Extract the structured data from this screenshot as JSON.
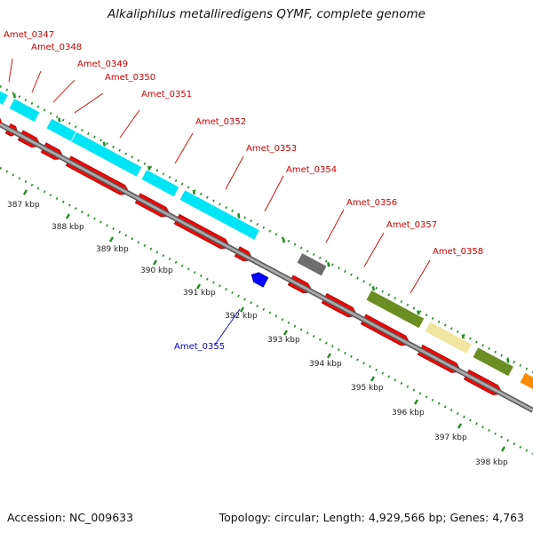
{
  "title": "Alkaliphilus metalliredigens QYMF, complete genome",
  "footer": {
    "accession": "Accession: NC_009633",
    "summary": "Topology: circular; Length: 4,929,566 bp; Genes: 4,763"
  },
  "colors": {
    "forward_cds": "#ff0000",
    "reverse_cds": "#0000ff",
    "backbone": "#8a8a8a",
    "tick": "#228b22",
    "gene_label_forward": "#cc0000",
    "gene_label_reverse": "#0000cc",
    "cog_cyan": "#00e5f5",
    "cog_gray": "#6e6e6e",
    "cog_olive": "#6b8e23",
    "cog_khaki": "#f0e6a0",
    "cog_orange": "#ff8c00"
  },
  "kbp_ticks": [
    "387 kbp",
    "388 kbp",
    "389 kbp",
    "390 kbp",
    "391 kbp",
    "392 kbp",
    "393 kbp",
    "394 kbp",
    "395 kbp",
    "396 kbp",
    "397 kbp",
    "398 kbp"
  ],
  "gene_labels": [
    {
      "text": "Amet_0347",
      "strand": "forward"
    },
    {
      "text": "Amet_0348",
      "strand": "forward"
    },
    {
      "text": "Amet_0349",
      "strand": "forward"
    },
    {
      "text": "Amet_0350",
      "strand": "forward"
    },
    {
      "text": "Amet_0351",
      "strand": "forward"
    },
    {
      "text": "Amet_0352",
      "strand": "forward"
    },
    {
      "text": "Amet_0353",
      "strand": "forward"
    },
    {
      "text": "Amet_0354",
      "strand": "forward"
    },
    {
      "text": "Amet_0356",
      "strand": "forward"
    },
    {
      "text": "Amet_0357",
      "strand": "forward"
    },
    {
      "text": "Amet_0358",
      "strand": "forward"
    },
    {
      "text": "Amet_0355",
      "strand": "reverse"
    }
  ],
  "cog_blocks": [
    {
      "color": "cog_cyan"
    },
    {
      "color": "cog_cyan"
    },
    {
      "color": "cog_cyan"
    },
    {
      "color": "cog_cyan"
    },
    {
      "color": "cog_cyan"
    },
    {
      "color": "cog_cyan"
    },
    {
      "color": "cog_cyan"
    },
    {
      "color": "cog_gray"
    },
    {
      "color": "cog_olive"
    },
    {
      "color": "cog_khaki"
    },
    {
      "color": "cog_olive"
    },
    {
      "color": "cog_orange"
    }
  ]
}
